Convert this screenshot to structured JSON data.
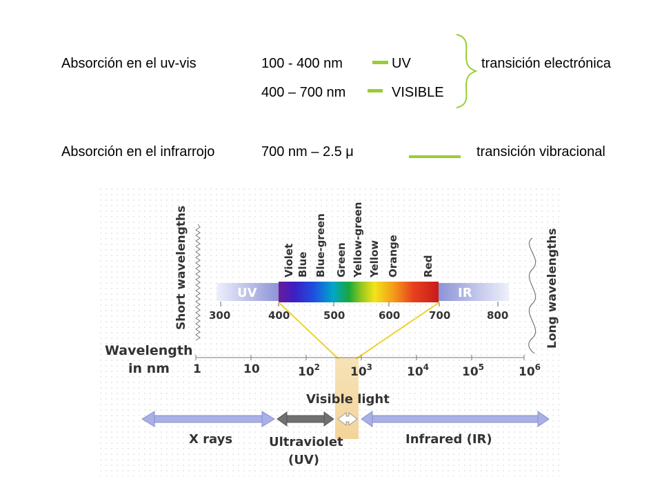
{
  "header": {
    "row1": {
      "label": "Absorción en el uv-vis",
      "range": "100 -  400 nm",
      "band": "UV",
      "transition": "transición electrónica"
    },
    "row2": {
      "range": "400 – 700 nm",
      "band": "VISIBLE"
    },
    "row3": {
      "label": "Absorción en el infrarrojo",
      "range": "700 nm – 2.5 μ",
      "transition": "transición vibracional"
    },
    "accent_color": "#9ACD32"
  },
  "figure": {
    "colors": [
      "Violet",
      "Blue",
      "Blue-green",
      "Green",
      "Yellow-green",
      "Yellow",
      "Orange",
      "Red"
    ],
    "band_uv": "UV",
    "band_ir": "IR",
    "top_ticks": [
      "300",
      "400",
      "500",
      "600",
      "700",
      "800"
    ],
    "short_label": "Short wavelengths",
    "long_label": "Long wavelengths",
    "axis_label_1": "Wavelength",
    "axis_label_2": "in nm",
    "bottom_ticks": [
      {
        "base": "1",
        "exp": ""
      },
      {
        "base": "10",
        "exp": ""
      },
      {
        "base": "10",
        "exp": "2"
      },
      {
        "base": "10",
        "exp": "3"
      },
      {
        "base": "10",
        "exp": "4"
      },
      {
        "base": "10",
        "exp": "5"
      },
      {
        "base": "10",
        "exp": "6"
      }
    ],
    "visible_light": "Visible light",
    "xrays": "X rays",
    "uv_1": "Ultraviolet",
    "uv_2": "(UV)",
    "infrared": "Infrared (IR)"
  }
}
